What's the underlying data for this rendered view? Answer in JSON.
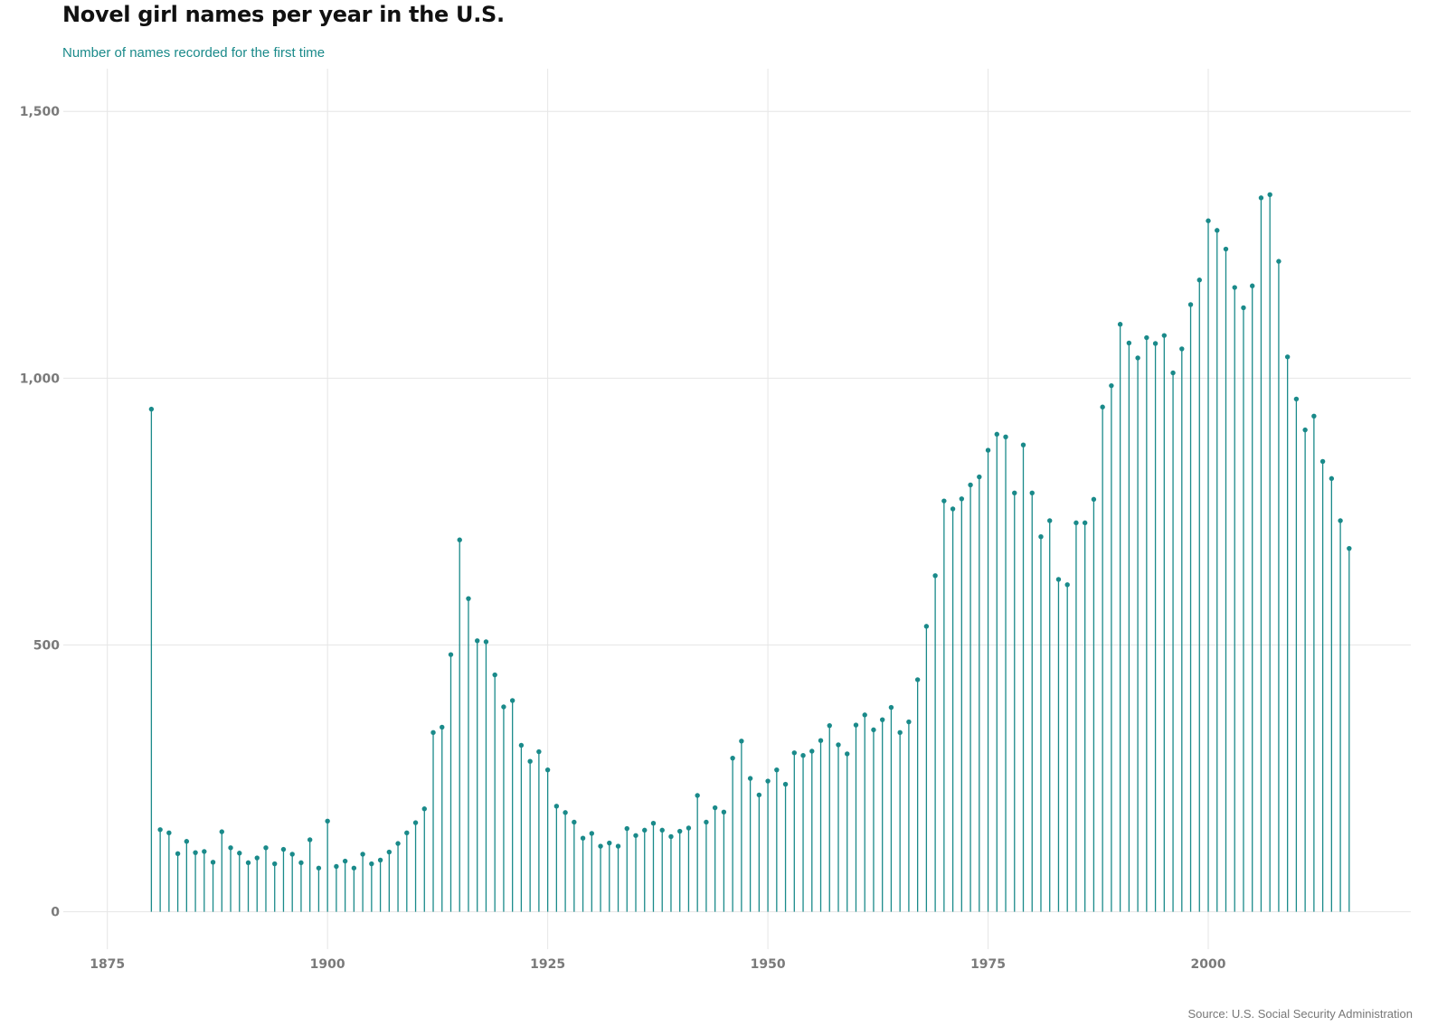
{
  "title": "Novel girl names per year in the U.S.",
  "subtitle": "Number of names recorded for the first time",
  "caption": "Source: U.S. Social Security Administration",
  "colors": {
    "series": "#1a8a8a",
    "grid": "#e6e6e6",
    "tick_text": "#7a7a7a"
  },
  "chart_data": {
    "type": "lollipop",
    "title": "Novel girl names per year in the U.S.",
    "subtitle": "Number of names recorded for the first time",
    "xlabel": "",
    "ylabel": "",
    "xlim": [
      1870,
      2023
    ],
    "ylim": [
      -70,
      1580
    ],
    "x_ticks": [
      1875,
      1900,
      1925,
      1950,
      1975,
      2000
    ],
    "x_tick_labels": [
      "1875",
      "1900",
      "1925",
      "1950",
      "1975",
      "2000"
    ],
    "y_ticks": [
      0,
      500,
      1000,
      1500
    ],
    "y_tick_labels": [
      "0",
      "500",
      "1,000",
      "1,500"
    ],
    "grid": true,
    "legend": "none",
    "x": [
      1880,
      1881,
      1882,
      1883,
      1884,
      1885,
      1886,
      1887,
      1888,
      1889,
      1890,
      1891,
      1892,
      1893,
      1894,
      1895,
      1896,
      1897,
      1898,
      1899,
      1900,
      1901,
      1902,
      1903,
      1904,
      1905,
      1906,
      1907,
      1908,
      1909,
      1910,
      1911,
      1912,
      1913,
      1914,
      1915,
      1916,
      1917,
      1918,
      1919,
      1920,
      1921,
      1922,
      1923,
      1924,
      1925,
      1926,
      1927,
      1928,
      1929,
      1930,
      1931,
      1932,
      1933,
      1934,
      1935,
      1936,
      1937,
      1938,
      1939,
      1940,
      1941,
      1942,
      1943,
      1944,
      1945,
      1946,
      1947,
      1948,
      1949,
      1950,
      1951,
      1952,
      1953,
      1954,
      1955,
      1956,
      1957,
      1958,
      1959,
      1960,
      1961,
      1962,
      1963,
      1964,
      1965,
      1966,
      1967,
      1968,
      1969,
      1970,
      1971,
      1972,
      1973,
      1974,
      1975,
      1976,
      1977,
      1978,
      1979,
      1980,
      1981,
      1982,
      1983,
      1984,
      1985,
      1986,
      1987,
      1988,
      1989,
      1990,
      1991,
      1992,
      1993,
      1994,
      1995,
      1996,
      1997,
      1998,
      1999,
      2000,
      2001,
      2002,
      2003,
      2004,
      2005,
      2006,
      2007,
      2008,
      2009,
      2010,
      2011,
      2012,
      2013,
      2014,
      2015,
      2016
    ],
    "values": [
      942,
      154,
      148,
      109,
      132,
      111,
      113,
      93,
      150,
      120,
      110,
      92,
      101,
      120,
      90,
      117,
      108,
      92,
      135,
      82,
      170,
      85,
      95,
      82,
      108,
      90,
      97,
      112,
      128,
      148,
      167,
      193,
      336,
      346,
      482,
      697,
      587,
      508,
      506,
      444,
      384,
      396,
      312,
      282,
      300,
      266,
      198,
      186,
      168,
      138,
      147,
      123,
      129,
      123,
      156,
      143,
      153,
      166,
      153,
      141,
      151,
      157,
      218,
      168,
      195,
      187,
      288,
      320,
      250,
      219,
      245,
      266,
      239,
      298,
      293,
      301,
      321,
      349,
      313,
      296,
      350,
      369,
      341,
      360,
      383,
      336,
      356,
      435,
      535,
      630,
      770,
      755,
      774,
      800,
      815,
      865,
      895,
      890,
      785,
      875,
      785,
      703,
      733,
      623,
      613,
      729,
      729,
      773,
      946,
      986,
      1101,
      1066,
      1038,
      1076,
      1065,
      1080,
      1010,
      1055,
      1138,
      1184,
      1295,
      1277,
      1242,
      1170,
      1132,
      1173,
      1338,
      1344,
      1219,
      1040,
      961,
      903,
      929,
      844,
      812,
      733,
      681
    ]
  }
}
